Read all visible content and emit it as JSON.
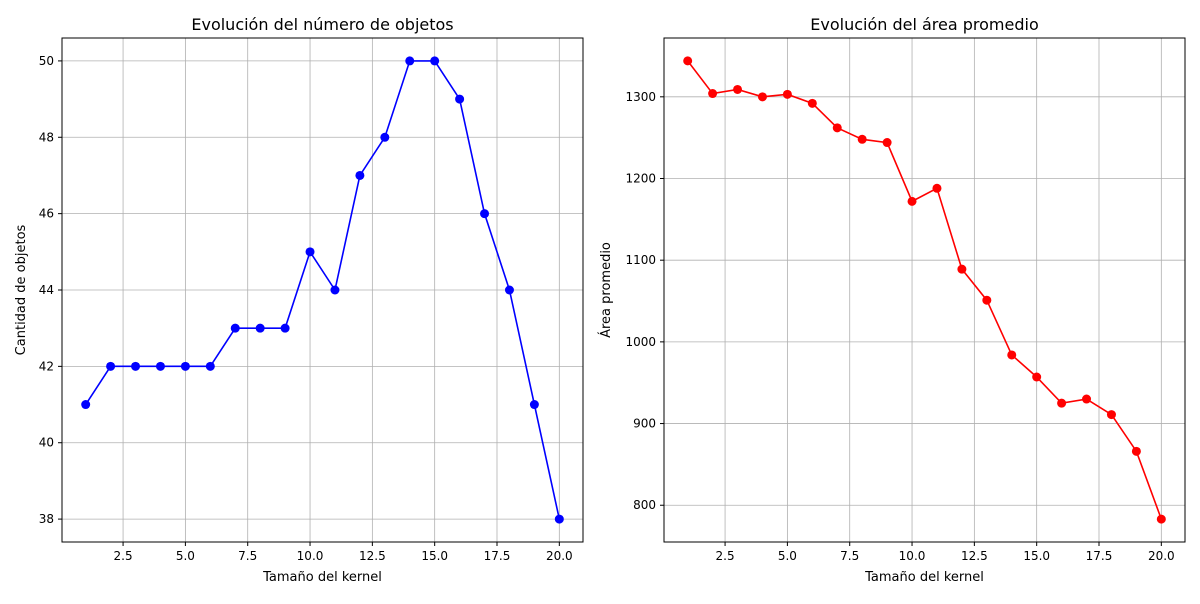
{
  "chart_data": [
    {
      "type": "line",
      "title": "Evolución del número de objetos",
      "xlabel": "Tamaño del kernel",
      "ylabel": "Cantidad de objetos",
      "xlim": [
        0.05,
        20.95
      ],
      "ylim": [
        37.4,
        50.6
      ],
      "xticks": [
        2.5,
        5.0,
        7.5,
        10.0,
        12.5,
        15.0,
        17.5,
        20.0
      ],
      "xtick_labels": [
        "2.5",
        "5.0",
        "7.5",
        "10.0",
        "12.5",
        "15.0",
        "17.5",
        "20.0"
      ],
      "yticks": [
        38,
        40,
        42,
        44,
        46,
        48,
        50
      ],
      "ytick_labels": [
        "38",
        "40",
        "42",
        "44",
        "46",
        "48",
        "50"
      ],
      "grid": true,
      "color": "#0000ff",
      "marker": "circle",
      "x": [
        1,
        2,
        3,
        4,
        5,
        6,
        7,
        8,
        9,
        10,
        11,
        12,
        13,
        14,
        15,
        16,
        17,
        18,
        19,
        20
      ],
      "y": [
        41,
        42,
        42,
        42,
        42,
        42,
        43,
        43,
        43,
        45,
        44,
        47,
        48,
        50,
        50,
        49,
        46,
        44,
        41,
        38
      ]
    },
    {
      "type": "line",
      "title": "Evolución del área promedio",
      "xlabel": "Tamaño del kernel",
      "ylabel": "Área promedio",
      "xlim": [
        0.05,
        20.95
      ],
      "ylim": [
        755,
        1372
      ],
      "xticks": [
        2.5,
        5.0,
        7.5,
        10.0,
        12.5,
        15.0,
        17.5,
        20.0
      ],
      "xtick_labels": [
        "2.5",
        "5.0",
        "7.5",
        "10.0",
        "12.5",
        "15.0",
        "17.5",
        "20.0"
      ],
      "yticks": [
        800,
        900,
        1000,
        1100,
        1200,
        1300
      ],
      "ytick_labels": [
        "800",
        "900",
        "1000",
        "1100",
        "1200",
        "1300"
      ],
      "grid": true,
      "color": "#ff0000",
      "marker": "circle",
      "x": [
        1,
        2,
        3,
        4,
        5,
        6,
        7,
        8,
        9,
        10,
        11,
        12,
        13,
        14,
        15,
        16,
        17,
        18,
        19,
        20
      ],
      "y": [
        1344,
        1304,
        1309,
        1300,
        1303,
        1292,
        1262,
        1248,
        1244,
        1172,
        1188,
        1089,
        1051,
        984,
        957,
        925,
        930,
        911,
        866,
        783
      ]
    }
  ]
}
